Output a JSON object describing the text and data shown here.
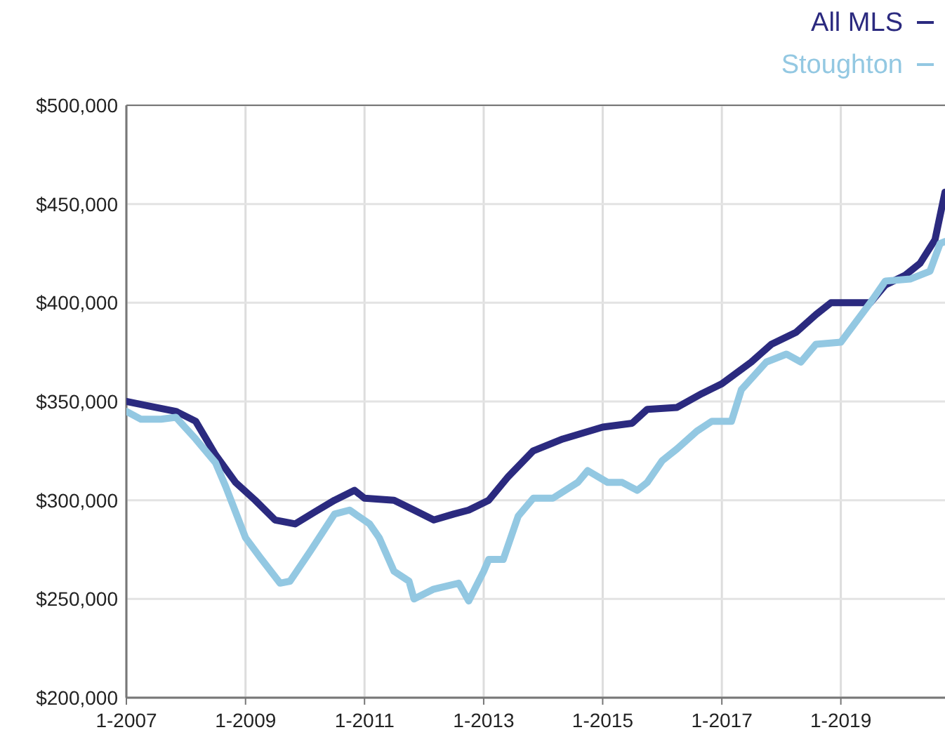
{
  "chart_data": {
    "type": "line",
    "legend": "top right",
    "grid": true,
    "xlim": [
      "2007-01",
      "2020-10"
    ],
    "ylim": [
      200000,
      500000
    ],
    "xticks": [
      {
        "value": "2007-01",
        "label": "1-2007"
      },
      {
        "value": "2009-01",
        "label": "1-2009"
      },
      {
        "value": "2011-01",
        "label": "1-2011"
      },
      {
        "value": "2013-01",
        "label": "1-2013"
      },
      {
        "value": "2015-01",
        "label": "1-2015"
      },
      {
        "value": "2017-01",
        "label": "1-2017"
      },
      {
        "value": "2019-01",
        "label": "1-2019"
      }
    ],
    "yticks": [
      {
        "value": 200000,
        "label": "$200,000"
      },
      {
        "value": 250000,
        "label": "$250,000"
      },
      {
        "value": 300000,
        "label": "$300,000"
      },
      {
        "value": 350000,
        "label": "$350,000"
      },
      {
        "value": 400000,
        "label": "$400,000"
      },
      {
        "value": 450000,
        "label": "$450,000"
      },
      {
        "value": 500000,
        "label": "$500,000"
      }
    ],
    "series": [
      {
        "name": "All MLS",
        "color": "#2b2a7f",
        "x": [
          "2007-01",
          "2007-05",
          "2007-11",
          "2008-03",
          "2008-07",
          "2008-11",
          "2009-03",
          "2009-07",
          "2009-11",
          "2010-03",
          "2010-07",
          "2010-11",
          "2011-01",
          "2011-07",
          "2011-11",
          "2012-03",
          "2012-07",
          "2012-10",
          "2013-02",
          "2013-06",
          "2013-11",
          "2014-05",
          "2015-01",
          "2015-07",
          "2015-10",
          "2016-04",
          "2016-09",
          "2017-01",
          "2017-07",
          "2017-11",
          "2018-04",
          "2018-08",
          "2018-11",
          "2019-07",
          "2019-10",
          "2020-02",
          "2020-05",
          "2020-08",
          "2020-10"
        ],
        "values": [
          350000,
          348000,
          345000,
          340000,
          323000,
          309000,
          300000,
          290000,
          288000,
          294000,
          300000,
          305000,
          301000,
          300000,
          295000,
          290000,
          293000,
          295000,
          300000,
          312000,
          325000,
          331000,
          337000,
          339000,
          346000,
          347000,
          354000,
          359000,
          370000,
          379000,
          385000,
          394000,
          400000,
          400000,
          409000,
          414000,
          420000,
          432000,
          456000
        ]
      },
      {
        "name": "Stoughton",
        "color": "#93c8e2",
        "x": [
          "2007-01",
          "2007-04",
          "2007-08",
          "2007-11",
          "2008-03",
          "2008-07",
          "2008-09",
          "2009-01",
          "2009-04",
          "2009-08",
          "2009-10",
          "2010-02",
          "2010-07",
          "2010-10",
          "2011-02",
          "2011-04",
          "2011-07",
          "2011-10",
          "2011-11",
          "2012-03",
          "2012-08",
          "2012-10",
          "2013-01",
          "2013-02",
          "2013-05",
          "2013-08",
          "2013-11",
          "2014-03",
          "2014-08",
          "2014-10",
          "2015-02",
          "2015-05",
          "2015-08",
          "2015-10",
          "2016-01",
          "2016-04",
          "2016-08",
          "2016-11",
          "2017-03",
          "2017-05",
          "2017-10",
          "2018-02",
          "2018-05",
          "2018-08",
          "2019-01",
          "2019-04",
          "2019-07",
          "2019-10",
          "2020-03",
          "2020-07",
          "2020-09",
          "2020-10"
        ],
        "values": [
          345000,
          341000,
          341000,
          342000,
          331000,
          319000,
          307000,
          281000,
          271000,
          258000,
          259000,
          274000,
          293000,
          295000,
          288000,
          281000,
          264000,
          259000,
          250000,
          255000,
          258000,
          249000,
          264000,
          270000,
          270000,
          292000,
          301000,
          301000,
          309000,
          315000,
          309000,
          309000,
          305000,
          309000,
          320000,
          326000,
          335000,
          340000,
          340000,
          356000,
          370000,
          374000,
          370000,
          379000,
          380000,
          390000,
          400000,
          411000,
          412000,
          416000,
          430000,
          431000
        ]
      }
    ]
  }
}
